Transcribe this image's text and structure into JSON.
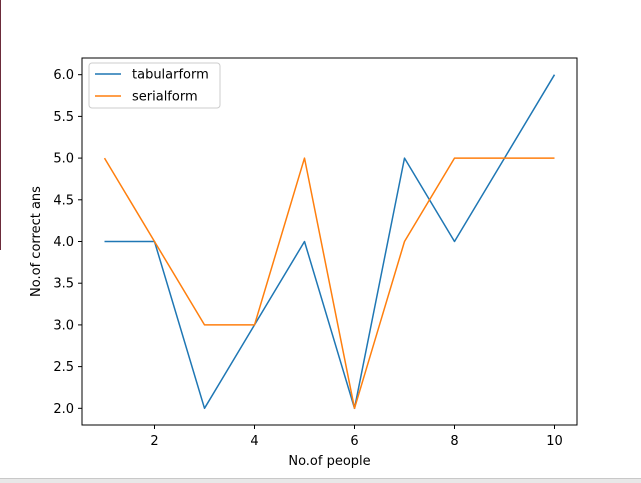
{
  "chart_data": {
    "type": "line",
    "title": "",
    "xlabel": "No.of people",
    "ylabel": "No.of correct ans",
    "x": [
      1,
      2,
      3,
      4,
      5,
      6,
      7,
      8,
      9,
      10
    ],
    "xlim": [
      0.55,
      10.45
    ],
    "ylim": [
      1.8,
      6.2
    ],
    "xticks": [
      2,
      4,
      6,
      8,
      10
    ],
    "xtick_labels": [
      "2",
      "4",
      "6",
      "8",
      "10"
    ],
    "yticks": [
      2.0,
      2.5,
      3.0,
      3.5,
      4.0,
      4.5,
      5.0,
      5.5,
      6.0
    ],
    "ytick_labels": [
      "2.0",
      "2.5",
      "3.0",
      "3.5",
      "4.0",
      "4.5",
      "5.0",
      "5.5",
      "6.0"
    ],
    "grid": false,
    "legend_position": "upper-left",
    "series": [
      {
        "name": "tabularform",
        "color": "#1f77b4",
        "values": [
          4,
          4,
          2,
          3,
          4,
          2,
          5,
          4,
          5,
          6
        ]
      },
      {
        "name": "serialform",
        "color": "#ff7f0e",
        "values": [
          5,
          4,
          3,
          3,
          5,
          2,
          4,
          5,
          5,
          5
        ]
      }
    ]
  }
}
